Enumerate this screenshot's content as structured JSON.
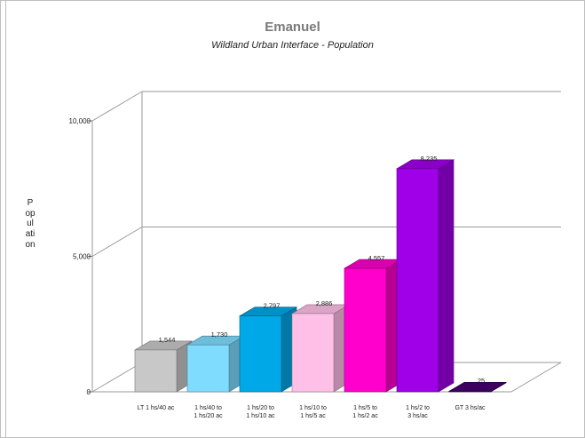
{
  "chart_data": {
    "type": "bar",
    "title": "Emanuel",
    "subtitle": "Wildland Urban Interface - Population",
    "ylabel": "Population",
    "xlabel": "",
    "ylim": [
      0,
      10000
    ],
    "yticks": [
      {
        "value": 0,
        "label": "0"
      },
      {
        "value": 5000,
        "label": "5,000"
      },
      {
        "value": 10000,
        "label": "10,000"
      }
    ],
    "grid": true,
    "categories": [
      [
        "LT 1 hs/40 ac"
      ],
      [
        "1 hs/40 to",
        "1 hs/20 ac"
      ],
      [
        "1 hs/20 to",
        "1 hs/10 ac"
      ],
      [
        "1 hs/10 to",
        "1 hs/5 ac"
      ],
      [
        "1 hs/5 to",
        "1 hs/2 ac"
      ],
      [
        "1 hs/2 to",
        "3 hs/ac"
      ],
      [
        "GT 3 hs/ac"
      ]
    ],
    "values": [
      1544,
      1730,
      2797,
      2886,
      4557,
      8235,
      25
    ],
    "value_labels": [
      "1,544",
      "1,730",
      "2,797",
      "2,886",
      "4,557",
      "8,235",
      "25"
    ],
    "colors": [
      "#c8c8c8",
      "#7fdcff",
      "#00a8e8",
      "#ffc0e8",
      "#ff00cc",
      "#a000e8",
      "#480070"
    ]
  }
}
